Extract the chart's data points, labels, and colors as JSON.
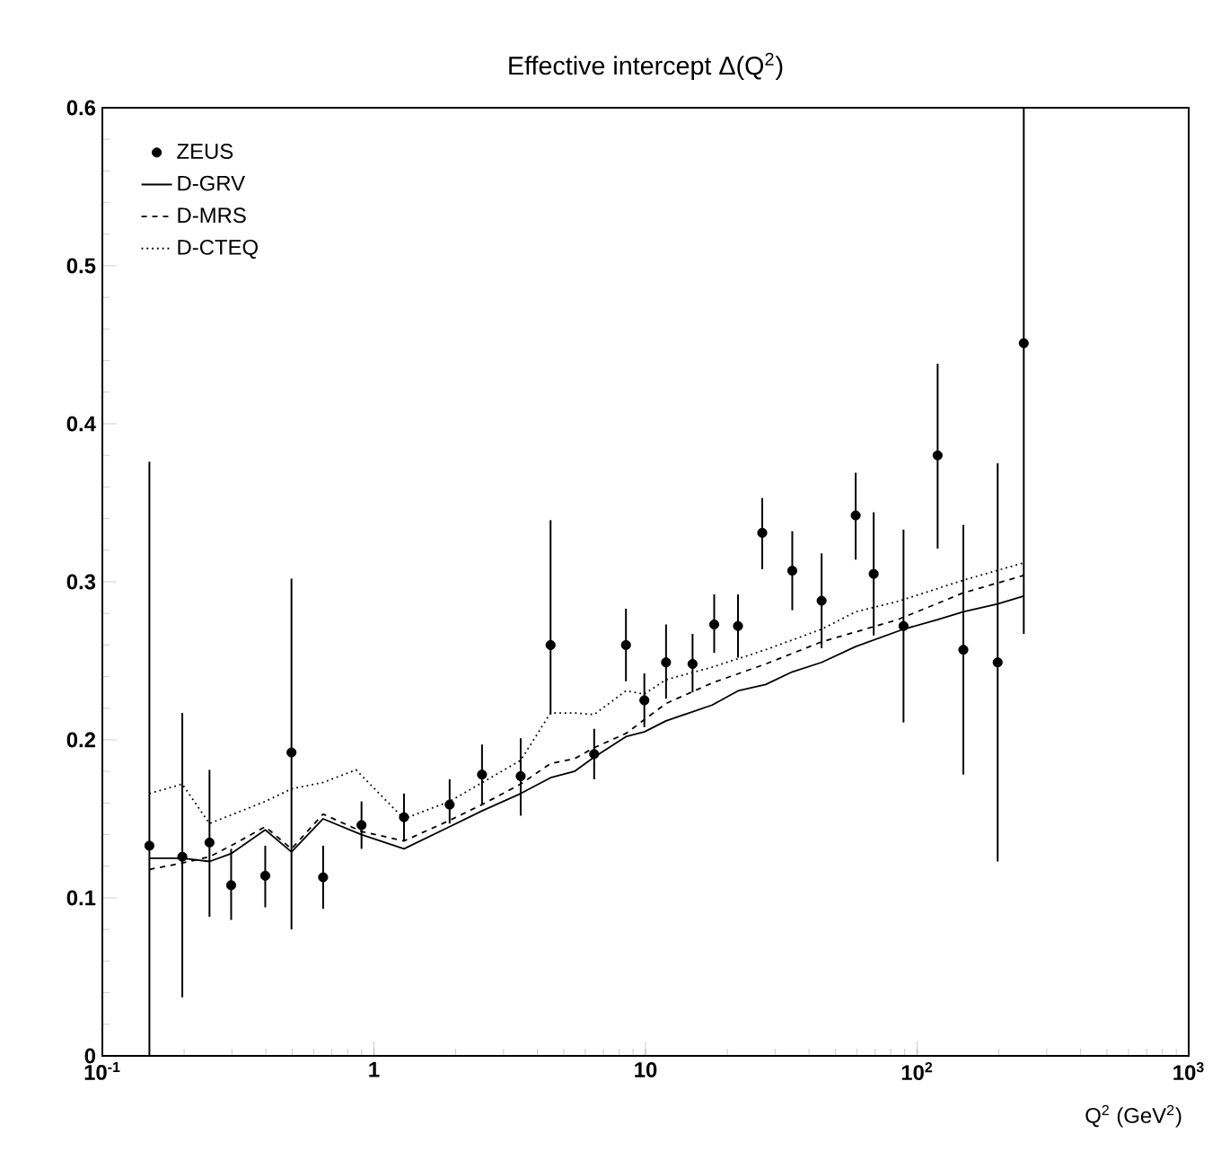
{
  "chart_data": {
    "type": "line",
    "title": "Effective intercept Δ(Q$^{2}$)",
    "xlabel": "Q$^{2}$ (GeV$^{2}$)",
    "log": "x",
    "xlim": [
      0.1,
      1000
    ],
    "ylim": [
      0,
      0.6
    ],
    "xticks": [
      {
        "value": 0.1,
        "label": "10$^{-1}$"
      },
      1,
      10,
      {
        "value": 100,
        "label": "10$^{2}$"
      },
      {
        "value": 1000,
        "label": "10$^{3}$"
      }
    ],
    "yticks": [
      0,
      0.1,
      0.2,
      0.3,
      0.4,
      0.5,
      0.6
    ],
    "grid": false,
    "legend": "top left",
    "series": [
      {
        "name": "ZEUS",
        "type": "scatter",
        "color": "#000000",
        "marker": "circle",
        "x": [
          0.149,
          0.197,
          0.248,
          0.298,
          0.398,
          0.497,
          0.65,
          0.9,
          1.29,
          1.9,
          2.5,
          3.47,
          4.47,
          6.47,
          8.47,
          9.9,
          11.9,
          14.9,
          17.9,
          21.9,
          26.9,
          34.7,
          44.5,
          59.4,
          69.2,
          89.1,
          119,
          148,
          198,
          247
        ],
        "values": [
          0.133,
          0.126,
          0.135,
          0.108,
          0.114,
          0.192,
          0.113,
          0.146,
          0.151,
          0.159,
          0.178,
          0.177,
          0.26,
          0.191,
          0.26,
          0.225,
          0.249,
          0.248,
          0.273,
          0.272,
          0.331,
          0.307,
          0.288,
          0.342,
          0.305,
          0.272,
          0.38,
          0.257,
          0.249,
          0.451
        ],
        "errors": [
          [
            0,
            0.376
          ],
          [
            0.037,
            0.217
          ],
          [
            0.088,
            0.181
          ],
          [
            0.086,
            0.131
          ],
          [
            0.094,
            0.133
          ],
          [
            0.08,
            0.302
          ],
          [
            0.093,
            0.133
          ],
          [
            0.131,
            0.161
          ],
          [
            0.136,
            0.166
          ],
          [
            0.147,
            0.175
          ],
          [
            0.159,
            0.197
          ],
          [
            0.152,
            0.201
          ],
          [
            0.216,
            0.339
          ],
          [
            0.175,
            0.207
          ],
          [
            0.237,
            0.283
          ],
          [
            0.208,
            0.242
          ],
          [
            0.226,
            0.273
          ],
          [
            0.23,
            0.267
          ],
          [
            0.255,
            0.292
          ],
          [
            0.252,
            0.292
          ],
          [
            0.308,
            0.353
          ],
          [
            0.282,
            0.332
          ],
          [
            0.258,
            0.318
          ],
          [
            0.314,
            0.369
          ],
          [
            0.266,
            0.344
          ],
          [
            0.211,
            0.333
          ],
          [
            0.321,
            0.438
          ],
          [
            0.178,
            0.336
          ],
          [
            0.123,
            0.375
          ],
          [
            0.267,
            0.6
          ]
        ]
      },
      {
        "name": "D-GRV",
        "color": "#000000",
        "line_style": "solid",
        "marker": "none",
        "x": [
          0.149,
          0.197,
          0.248,
          0.298,
          0.398,
          0.497,
          0.65,
          0.9,
          1.29,
          1.9,
          2.5,
          3.47,
          4.47,
          5.47,
          6.47,
          8.47,
          9.9,
          11.9,
          17.6,
          21.9,
          27.7,
          34.7,
          44.5,
          59.4,
          89.1,
          119,
          148,
          198,
          247
        ],
        "values": [
          0.125,
          0.125,
          0.123,
          0.128,
          0.143,
          0.129,
          0.15,
          0.14,
          0.131,
          0.145,
          0.155,
          0.166,
          0.176,
          0.18,
          0.189,
          0.202,
          0.205,
          0.212,
          0.222,
          0.231,
          0.235,
          0.243,
          0.249,
          0.259,
          0.27,
          0.276,
          0.281,
          0.286,
          0.291
        ]
      },
      {
        "name": "D-MRS",
        "color": "#000000",
        "line_style": "dashed",
        "marker": "none",
        "x": [
          0.149,
          0.197,
          0.248,
          0.298,
          0.398,
          0.497,
          0.65,
          0.9,
          1.29,
          1.9,
          2.5,
          3.47,
          4.47,
          5.47,
          6.47,
          8.47,
          11.9,
          17.6,
          27.7,
          44.5,
          84.7,
          148,
          247
        ],
        "values": [
          0.118,
          0.122,
          0.126,
          0.133,
          0.145,
          0.131,
          0.153,
          0.142,
          0.136,
          0.149,
          0.159,
          0.172,
          0.185,
          0.188,
          0.195,
          0.204,
          0.223,
          0.236,
          0.248,
          0.262,
          0.276,
          0.293,
          0.304
        ]
      },
      {
        "name": "D-CTEQ",
        "color": "#000000",
        "line_style": "dotted",
        "marker": "none",
        "x": [
          0.149,
          0.197,
          0.248,
          0.398,
          0.497,
          0.65,
          0.859,
          1.29,
          1.9,
          3.47,
          4.47,
          5.47,
          6.47,
          8.47,
          9.9,
          11.9,
          17.6,
          27.7,
          44.5,
          59.4,
          84.7,
          148,
          247
        ],
        "values": [
          0.166,
          0.172,
          0.147,
          0.161,
          0.169,
          0.173,
          0.181,
          0.15,
          0.161,
          0.187,
          0.217,
          0.217,
          0.216,
          0.231,
          0.229,
          0.238,
          0.246,
          0.257,
          0.27,
          0.281,
          0.2875,
          0.301,
          0.312
        ]
      }
    ]
  }
}
